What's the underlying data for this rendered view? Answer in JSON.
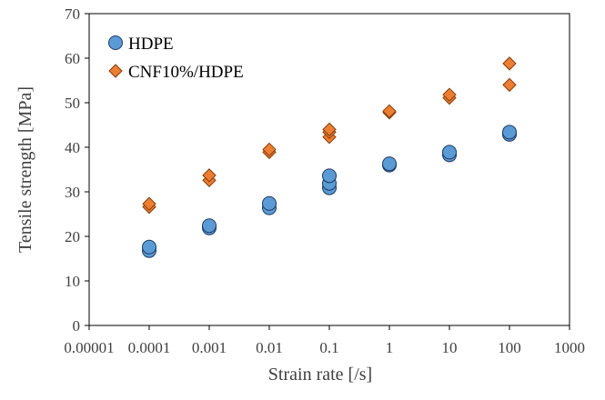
{
  "chart_data": {
    "type": "scatter",
    "title": "",
    "xlabel": "Strain rate [/s]",
    "ylabel": "Tensile strength [MPa]",
    "x_scale": "log",
    "xlim": [
      1e-05,
      1000
    ],
    "ylim": [
      0,
      70
    ],
    "x_tick_labels": [
      "0.00001",
      "0.0001",
      "0.001",
      "0.01",
      "0.1",
      "1",
      "10",
      "100",
      "1000"
    ],
    "x_ticks": [
      1e-05,
      0.0001,
      0.001,
      0.01,
      0.1,
      1,
      10,
      100,
      1000
    ],
    "y_ticks": [
      0,
      10,
      20,
      30,
      40,
      50,
      60,
      70
    ],
    "y_tick_labels": [
      "0",
      "10",
      "20",
      "30",
      "40",
      "50",
      "60",
      "70"
    ],
    "grid": false,
    "legend_position": "top-left",
    "series": [
      {
        "name": "HDPE",
        "marker": "circle",
        "color": "#5B9BD5",
        "edge_color": "#1F3864",
        "points": [
          {
            "x": 0.0001,
            "y": 16.8
          },
          {
            "x": 0.0001,
            "y": 17.6
          },
          {
            "x": 0.001,
            "y": 21.9
          },
          {
            "x": 0.001,
            "y": 22.4
          },
          {
            "x": 0.01,
            "y": 26.4
          },
          {
            "x": 0.01,
            "y": 27.4
          },
          {
            "x": 0.1,
            "y": 30.9
          },
          {
            "x": 0.1,
            "y": 31.9
          },
          {
            "x": 0.1,
            "y": 33.6
          },
          {
            "x": 1,
            "y": 36.0
          },
          {
            "x": 1,
            "y": 36.3
          },
          {
            "x": 10,
            "y": 38.3
          },
          {
            "x": 10,
            "y": 38.9
          },
          {
            "x": 100,
            "y": 42.9
          },
          {
            "x": 100,
            "y": 43.4
          }
        ]
      },
      {
        "name": "CNF10%/HDPE",
        "marker": "diamond",
        "color": "#ED7D31",
        "edge_color": "#843C0C",
        "points": [
          {
            "x": 0.0001,
            "y": 26.6
          },
          {
            "x": 0.0001,
            "y": 27.3
          },
          {
            "x": 0.001,
            "y": 32.6
          },
          {
            "x": 0.001,
            "y": 33.7
          },
          {
            "x": 0.01,
            "y": 38.9
          },
          {
            "x": 0.01,
            "y": 39.5
          },
          {
            "x": 0.1,
            "y": 42.3
          },
          {
            "x": 0.1,
            "y": 43.4
          },
          {
            "x": 0.1,
            "y": 44.0
          },
          {
            "x": 1,
            "y": 47.8
          },
          {
            "x": 1,
            "y": 48.1
          },
          {
            "x": 10,
            "y": 51.1
          },
          {
            "x": 10,
            "y": 51.8
          },
          {
            "x": 100,
            "y": 54.0
          },
          {
            "x": 100,
            "y": 58.8
          }
        ]
      }
    ]
  }
}
